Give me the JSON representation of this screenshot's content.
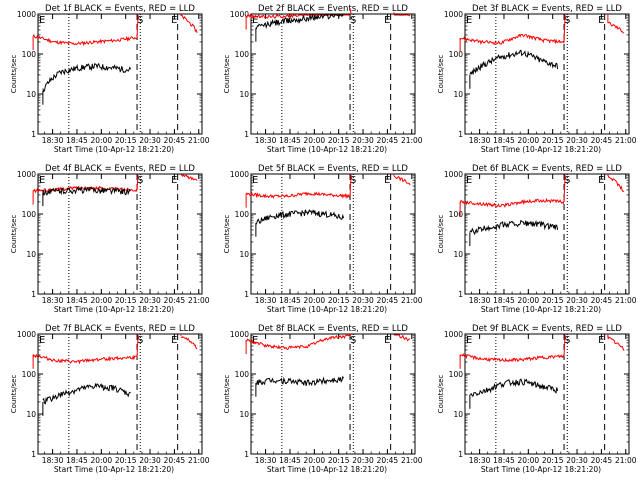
{
  "chart_data": {
    "type": "line",
    "grid_rows": 3,
    "grid_cols": 3,
    "ylabel": "Counts/sec",
    "xlabel": "Start Time (10-Apr-12 18:21:20)",
    "yscale": "log",
    "ylim": [
      1,
      1000
    ],
    "y_ticks": [
      "1",
      "10",
      "100",
      "1000"
    ],
    "x_ticks": [
      "18:30",
      "18:45",
      "20:00",
      "20:15",
      "20:30",
      "20:45",
      "21:00"
    ],
    "event_markers": {
      "dotted_lines_at": [
        "18:40",
        "20:24"
      ],
      "dashed_lines_at": [
        "20:22",
        "20:47"
      ],
      "marker_labels": [
        {
          "at": "18:20",
          "label": "E"
        },
        {
          "at": "20:22",
          "label": "S"
        },
        {
          "at": "20:43",
          "label": "E"
        }
      ]
    },
    "colors": {
      "events": "#000000",
      "lld": "#ff0000"
    },
    "panels": [
      {
        "title": "Det 1f BLACK = Events, RED = LLD",
        "events": {
          "start": "18:24",
          "end": "20:18",
          "level": [
            12,
            35,
            45,
            50,
            45,
            40
          ]
        },
        "lld": {
          "start": "18:18",
          "end": "20:22",
          "level": [
            280,
            200,
            180,
            200,
            220,
            260
          ],
          "post": [
            900,
            350
          ]
        }
      },
      {
        "title": "Det 2f BLACK = Events, RED = LLD",
        "events": {
          "start": "18:24",
          "end": "20:18",
          "level": [
            450,
            600,
            700,
            800,
            900,
            1000
          ]
        },
        "lld": {
          "start": "18:18",
          "end": "20:22",
          "level": [
            900,
            850,
            900,
            1000,
            1200,
            1400
          ],
          "post": [
            1100,
            900
          ]
        }
      },
      {
        "title": "Det 3f BLACK = Events, RED = LLD",
        "events": {
          "start": "18:24",
          "end": "20:18",
          "level": [
            30,
            60,
            90,
            110,
            70,
            50
          ]
        },
        "lld": {
          "start": "18:18",
          "end": "20:22",
          "level": [
            250,
            200,
            190,
            300,
            220,
            200
          ],
          "post": [
            600,
            350
          ]
        }
      },
      {
        "title": "Det 4f BLACK = Events, RED = LLD",
        "events": {
          "start": "18:24",
          "end": "20:18",
          "level": [
            350,
            380,
            400,
            400,
            380,
            360
          ]
        },
        "lld": {
          "start": "18:18",
          "end": "20:22",
          "level": [
            380,
            400,
            450,
            450,
            420,
            400
          ],
          "post": [
            1000,
            650
          ]
        }
      },
      {
        "title": "Det 5f BLACK = Events, RED = LLD",
        "events": {
          "start": "18:24",
          "end": "20:18",
          "level": [
            60,
            90,
            100,
            110,
            100,
            80
          ]
        },
        "lld": {
          "start": "18:18",
          "end": "20:22",
          "level": [
            320,
            280,
            280,
            330,
            300,
            280
          ],
          "post": [
            900,
            550
          ]
        }
      },
      {
        "title": "Det 6f BLACK = Events, RED = LLD",
        "events": {
          "start": "18:24",
          "end": "20:18",
          "level": [
            35,
            45,
            55,
            60,
            55,
            45
          ]
        },
        "lld": {
          "start": "18:18",
          "end": "20:22",
          "level": [
            200,
            180,
            160,
            200,
            220,
            200
          ],
          "post": [
            900,
            350
          ]
        }
      },
      {
        "title": "Det 7f BLACK = Events, RED = LLD",
        "events": {
          "start": "18:24",
          "end": "20:18",
          "level": [
            20,
            30,
            40,
            50,
            45,
            30
          ]
        },
        "lld": {
          "start": "18:18",
          "end": "20:22",
          "level": [
            300,
            220,
            200,
            230,
            250,
            260
          ],
          "post": [
            900,
            450
          ]
        }
      },
      {
        "title": "Det 8f BLACK = Events, RED = LLD",
        "events": {
          "start": "18:24",
          "end": "20:18",
          "level": [
            60,
            70,
            65,
            60,
            70,
            75
          ]
        },
        "lld": {
          "start": "18:18",
          "end": "20:22",
          "level": [
            700,
            500,
            450,
            500,
            800,
            900
          ],
          "post": [
            1000,
            700
          ]
        }
      },
      {
        "title": "Det 9f BLACK = Events, RED = LLD",
        "events": {
          "start": "18:24",
          "end": "20:18",
          "level": [
            30,
            40,
            60,
            65,
            50,
            40
          ]
        },
        "lld": {
          "start": "18:18",
          "end": "20:22",
          "level": [
            300,
            240,
            220,
            230,
            260,
            280
          ],
          "post": [
            800,
            400
          ]
        }
      }
    ]
  }
}
